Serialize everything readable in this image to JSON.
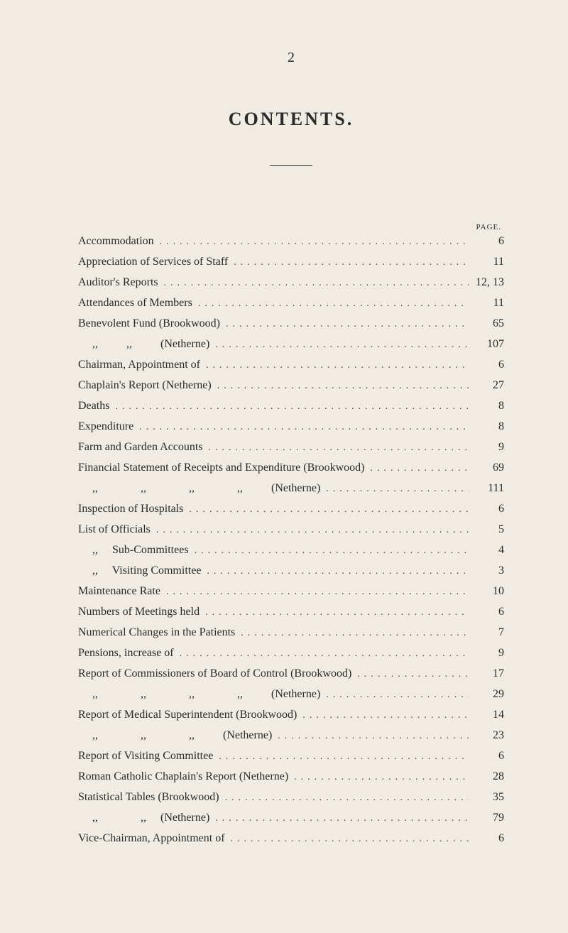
{
  "page_number_top": "2",
  "title": "CONTENTS.",
  "page_header": "PAGE.",
  "entries": [
    {
      "label": "Accommodation",
      "page": "6"
    },
    {
      "label": "Appreciation of Services of Staff",
      "page": "11"
    },
    {
      "label": "Auditor's Reports",
      "page": "12, 13"
    },
    {
      "label": "Attendances of Members",
      "page": "11"
    },
    {
      "label": "Benevolent Fund (Brookwood)",
      "page": "65"
    },
    {
      "label": "     ,,          ,,          (Netherne)",
      "page": "107"
    },
    {
      "label": "Chairman, Appointment of",
      "page": "6"
    },
    {
      "label": "Chaplain's Report (Netherne)",
      "page": "27"
    },
    {
      "label": "Deaths",
      "page": "8"
    },
    {
      "label": "Expenditure",
      "page": "8"
    },
    {
      "label": "Farm and Garden Accounts",
      "page": "9"
    },
    {
      "label": "Financial Statement of Receipts and Expenditure (Brookwood)",
      "page": "69"
    },
    {
      "label": "     ,,               ,,               ,,               ,,          (Netherne)",
      "page": "111"
    },
    {
      "label": "Inspection of Hospitals",
      "page": "6"
    },
    {
      "label": "List of Officials",
      "page": "5"
    },
    {
      "label": "     ,,     Sub-Committees",
      "page": "4"
    },
    {
      "label": "     ,,     Visiting Committee",
      "page": "3"
    },
    {
      "label": "Maintenance Rate",
      "page": "10"
    },
    {
      "label": "Numbers of Meetings held",
      "page": "6"
    },
    {
      "label": "Numerical Changes in the Patients",
      "page": "7"
    },
    {
      "label": "Pensions, increase of",
      "page": "9"
    },
    {
      "label": "Report of Commissioners of Board of Control (Brookwood)",
      "page": "17"
    },
    {
      "label": "     ,,               ,,               ,,               ,,          (Netherne)",
      "page": "29"
    },
    {
      "label": "Report of Medical Superintendent (Brookwood)",
      "page": "14"
    },
    {
      "label": "     ,,               ,,               ,,          (Netherne)",
      "page": "23"
    },
    {
      "label": "Report of Visiting Committee",
      "page": "6"
    },
    {
      "label": "Roman Catholic Chaplain's Report (Netherne)",
      "page": "28"
    },
    {
      "label": "Statistical Tables (Brookwood)",
      "page": "35"
    },
    {
      "label": "     ,,               ,,     (Netherne)",
      "page": "79"
    },
    {
      "label": "Vice-Chairman, Appointment of",
      "page": "6"
    }
  ],
  "leader_fill": "......................................................................................"
}
